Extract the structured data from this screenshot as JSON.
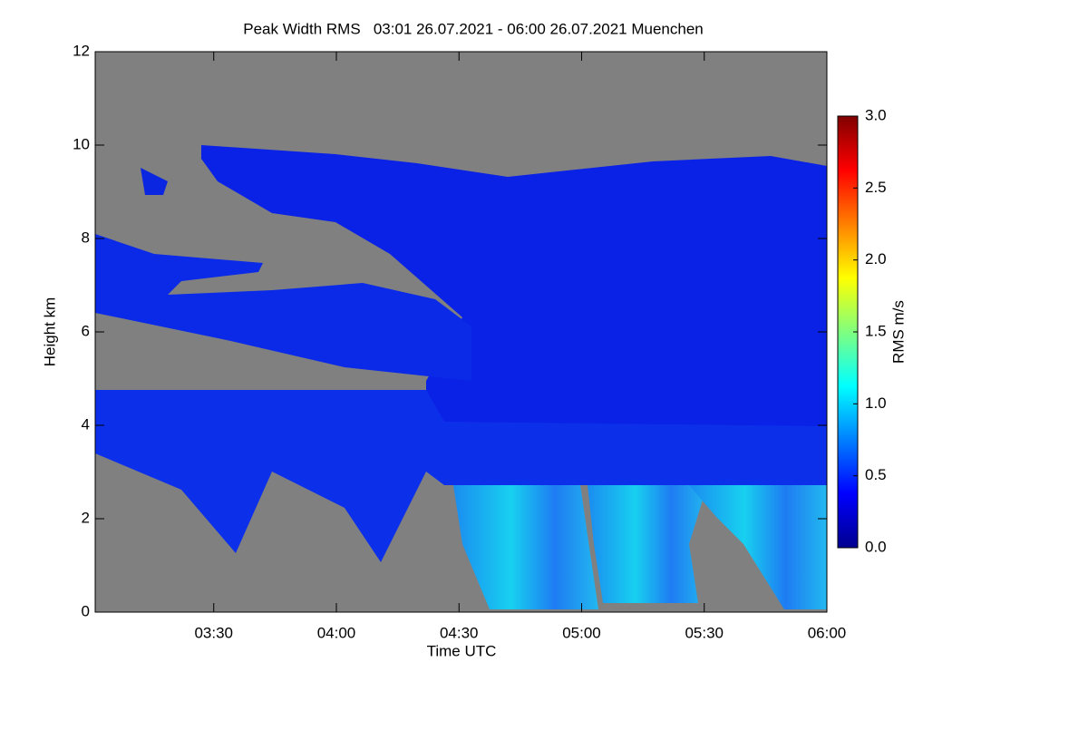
{
  "chart_data": {
    "type": "heatmap",
    "title": "Peak Width RMS   03:01 26.07.2021 - 06:00 26.07.2021 Muenchen",
    "x_label": "Time UTC",
    "y_label": "Height km",
    "xlim": [
      181,
      360
    ],
    "xticks": [
      {
        "value": 210,
        "label": "03:30"
      },
      {
        "value": 240,
        "label": "04:00"
      },
      {
        "value": 270,
        "label": "04:30"
      },
      {
        "value": 300,
        "label": "05:00"
      },
      {
        "value": 330,
        "label": "05:30"
      },
      {
        "value": 360,
        "label": "06:00"
      }
    ],
    "ylim": [
      0,
      12
    ],
    "yticks": [
      0,
      2,
      4,
      6,
      8,
      10,
      12
    ],
    "colorbar": {
      "label": "RMS m/s",
      "lim": [
        0,
        3
      ],
      "ticks": [
        {
          "value": 0,
          "label": "0.0"
        },
        {
          "value": 0.5,
          "label": "0.5"
        },
        {
          "value": 1,
          "label": "1.0"
        },
        {
          "value": 1.5,
          "label": "1.5"
        },
        {
          "value": 2,
          "label": "2.0"
        },
        {
          "value": 2.5,
          "label": "2.5"
        },
        {
          "value": 3,
          "label": "3.0"
        }
      ]
    }
  }
}
